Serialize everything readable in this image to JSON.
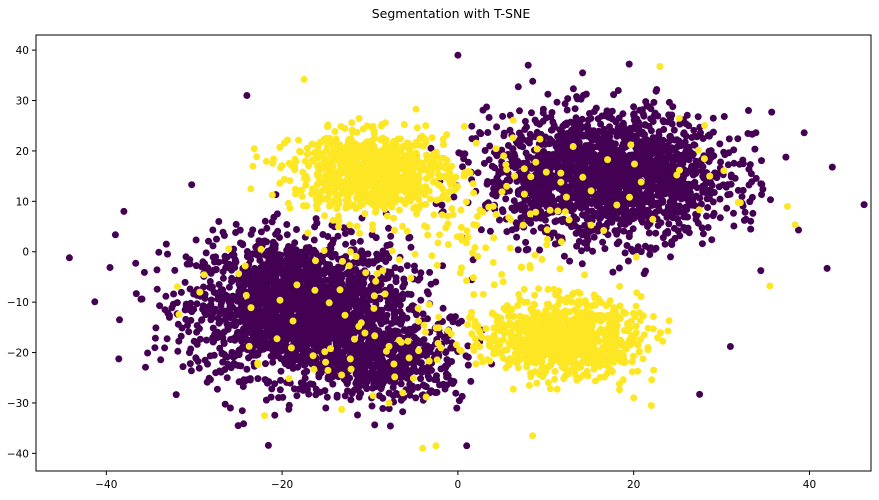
{
  "chart_data": {
    "type": "scatter",
    "title": "Segmentation with T-SNE",
    "xlabel": "",
    "ylabel": "",
    "xlim": [
      -48,
      47
    ],
    "ylim": [
      -43.5,
      43
    ],
    "xticks": [
      -40,
      -20,
      0,
      20,
      40
    ],
    "yticks": [
      -40,
      -30,
      -20,
      -10,
      0,
      10,
      20,
      30,
      40
    ],
    "grid": false,
    "colors": {
      "cluster_0": "#440154",
      "cluster_1": "#fde725"
    },
    "clusters": [
      {
        "label": 1,
        "color": "#fde725",
        "center": [
          -10,
          16
        ],
        "spread": [
          7,
          6
        ],
        "count": 900
      },
      {
        "label": 1,
        "color": "#fde725",
        "center": [
          12,
          -17
        ],
        "spread": [
          7,
          6
        ],
        "count": 900
      },
      {
        "label": 0,
        "color": "#440154",
        "center": [
          -18,
          -11
        ],
        "spread": [
          10,
          11
        ],
        "count": 2200
      },
      {
        "label": 0,
        "color": "#440154",
        "center": [
          17,
          15
        ],
        "spread": [
          11,
          10
        ],
        "count": 2000
      },
      {
        "label": 0,
        "color": "#440154",
        "center": [
          -8,
          -22
        ],
        "spread": [
          7,
          6
        ],
        "count": 500
      },
      {
        "label": 1,
        "color": "#fde725",
        "center": [
          0,
          5
        ],
        "spread": [
          12,
          12
        ],
        "count": 120
      }
    ],
    "points": [
      {
        "x": -44.2,
        "y": -1.2,
        "label": 0
      },
      {
        "x": 42.6,
        "y": 16.8,
        "label": 0
      },
      {
        "x": 39.4,
        "y": 23.6,
        "label": 0
      },
      {
        "x": 42.0,
        "y": -3.3,
        "label": 0
      },
      {
        "x": -38.0,
        "y": 8.0,
        "label": 0
      },
      {
        "x": -24.0,
        "y": 31.0,
        "label": 0
      },
      {
        "x": 0.0,
        "y": 39.0,
        "label": 0
      },
      {
        "x": 8.0,
        "y": 37.0,
        "label": 0
      },
      {
        "x": 35.7,
        "y": 27.7,
        "label": 0
      },
      {
        "x": 31.0,
        "y": -18.8,
        "label": 0
      },
      {
        "x": 27.5,
        "y": -28.3,
        "label": 0
      },
      {
        "x": -2.5,
        "y": -38.5,
        "label": 1
      },
      {
        "x": -4.0,
        "y": -39.0,
        "label": 1
      },
      {
        "x": 1.0,
        "y": -38.5,
        "label": 0
      },
      {
        "x": 8.5,
        "y": -36.5,
        "label": 1
      },
      {
        "x": -38.5,
        "y": -13.5,
        "label": 0
      },
      {
        "x": -25.0,
        "y": -34.5,
        "label": 0
      },
      {
        "x": -22.0,
        "y": -32.5,
        "label": 1
      },
      {
        "x": 37.5,
        "y": 9.0,
        "label": 1
      },
      {
        "x": 35.5,
        "y": -6.8,
        "label": 1
      },
      {
        "x": -17.5,
        "y": 34.2,
        "label": 1
      },
      {
        "x": 20.0,
        "y": -29.0,
        "label": 1
      },
      {
        "x": 22.0,
        "y": -30.5,
        "label": 1
      }
    ]
  }
}
